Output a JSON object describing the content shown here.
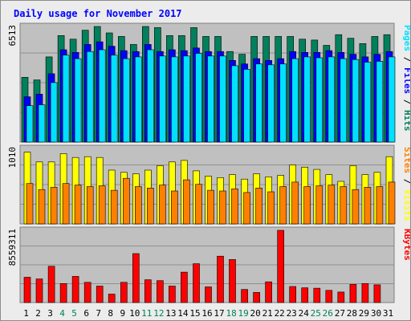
{
  "chart_data": {
    "type": "bar",
    "title": "Daily usage for November 2017",
    "categories": [
      "1",
      "2",
      "3",
      "4",
      "5",
      "6",
      "7",
      "8",
      "9",
      "10",
      "11",
      "12",
      "13",
      "14",
      "15",
      "16",
      "17",
      "18",
      "19",
      "20",
      "21",
      "22",
      "23",
      "24",
      "25",
      "26",
      "27",
      "28",
      "29",
      "30",
      "31"
    ],
    "weekend_days": [
      "4",
      "5",
      "11",
      "12",
      "18",
      "19",
      "25",
      "26"
    ],
    "panels": [
      {
        "id": "hits",
        "max_label": "6513",
        "ylim": [
          0,
          6513
        ],
        "legend": [
          {
            "text": "Hits",
            "color": "#00805c"
          },
          {
            "text": "Files",
            "color": "#0000ff"
          },
          {
            "text": "Pages",
            "color": "#00e0ff"
          }
        ],
        "series": [
          {
            "name": "Hits",
            "color": "#00805c",
            "values": [
              3650,
              3500,
              4800,
              6000,
              5800,
              6300,
              6600,
              6150,
              5950,
              5500,
              6550,
              6450,
              6000,
              6000,
              6450,
              5950,
              5950,
              5100,
              4950,
              5950,
              5950,
              5950,
              5950,
              5800,
              5750,
              5450,
              6050,
              5850,
              5550,
              5950,
              6050
            ]
          },
          {
            "name": "Files",
            "color": "#0000ff",
            "values": [
              2550,
              2700,
              3850,
              5200,
              5050,
              5500,
              5650,
              5400,
              5150,
              5100,
              5500,
              5100,
              5200,
              5150,
              5300,
              5100,
              5100,
              4600,
              4400,
              4700,
              4600,
              4700,
              5100,
              5050,
              5050,
              5150,
              5050,
              4950,
              4800,
              4950,
              5100
            ]
          },
          {
            "name": "Pages",
            "color": "#00e0ff",
            "values": [
              2050,
              2100,
              3350,
              4900,
              4700,
              5100,
              5200,
              4900,
              4700,
              4800,
              5200,
              4850,
              4800,
              4850,
              5000,
              4850,
              4850,
              4300,
              4100,
              4400,
              4350,
              4400,
              4700,
              4800,
              4750,
              4800,
              4700,
              4650,
              4500,
              4550,
              4800
            ]
          }
        ]
      },
      {
        "id": "visits",
        "max_label": "1010",
        "ylim": [
          0,
          1010
        ],
        "legend": [
          {
            "text": "Visits",
            "color": "#ffff00"
          },
          {
            "text": "Sites",
            "color": "#ff8000"
          }
        ],
        "series": [
          {
            "name": "Visits",
            "color": "#ffff00",
            "values": [
              960,
              830,
              830,
              940,
              890,
              900,
              890,
              720,
              690,
              670,
              720,
              780,
              830,
              850,
              710,
              640,
              620,
              660,
              600,
              670,
              630,
              650,
              790,
              760,
              730,
              660,
              570,
              780,
              660,
              690,
              900
            ]
          },
          {
            "name": "Sites",
            "color": "#ff8000",
            "values": [
              540,
              460,
              490,
              540,
              520,
              500,
              510,
              450,
              610,
              500,
              480,
              520,
              440,
              590,
              530,
              450,
              440,
              470,
              420,
              480,
              430,
              500,
              560,
              500,
              510,
              520,
              500,
              460,
              490,
              500,
              560
            ]
          }
        ]
      },
      {
        "id": "kbytes",
        "max_label": "8559311",
        "ylim": [
          0,
          8559311
        ],
        "legend": [
          {
            "text": "KBytes",
            "color": "#ff0000"
          }
        ],
        "series": [
          {
            "name": "KBytes",
            "color": "#ff0000",
            "values": [
              3000000,
              2800000,
              4300000,
              2250000,
              3100000,
              2400000,
              1950000,
              1000000,
              2400000,
              5800000,
              2700000,
              2600000,
              1950000,
              3600000,
              4600000,
              1850000,
              5500000,
              5100000,
              1550000,
              1200000,
              2450000,
              8559311,
              1900000,
              1750000,
              1700000,
              1450000,
              1250000,
              2150000,
              2250000,
              2100000,
              0
            ]
          }
        ]
      }
    ]
  }
}
